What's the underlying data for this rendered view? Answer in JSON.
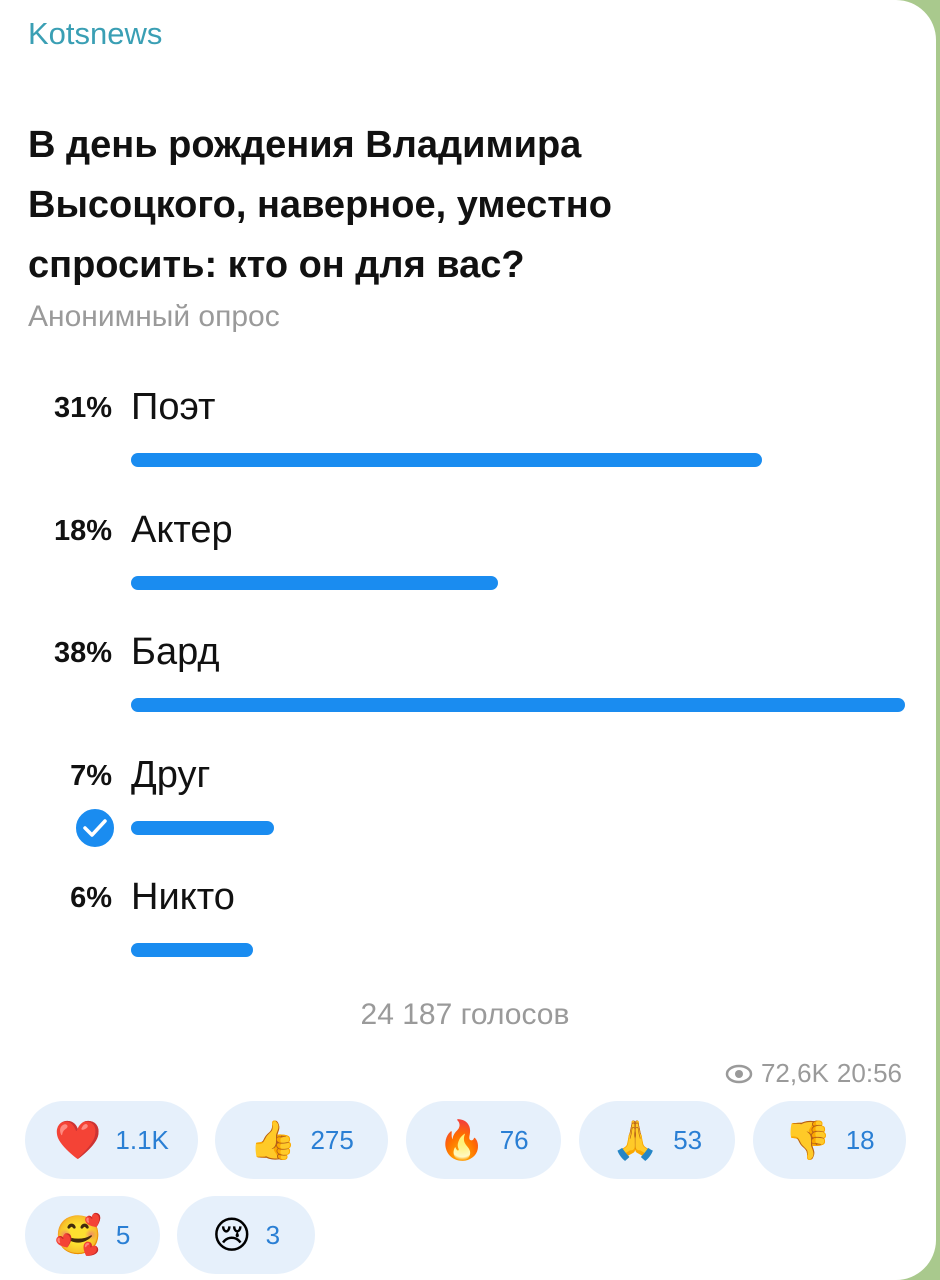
{
  "header": {
    "channel": "Kotsnews"
  },
  "poll": {
    "question": [
      "В день рождения Владимира",
      "Высоцкого, наверное, уместно",
      "спросить: кто он для вас?"
    ],
    "type": "Анонимный опрос",
    "options": [
      {
        "value": 31,
        "value_label": "31%",
        "text": "Поэт",
        "selected": false
      },
      {
        "value": 18,
        "value_label": "18%",
        "text": "Актер",
        "selected": false
      },
      {
        "value": 38,
        "value_label": "38%",
        "text": "Бард",
        "selected": false
      },
      {
        "value": 7,
        "value_label": "7%",
        "text": "Друг",
        "selected": true
      },
      {
        "value": 6,
        "value_label": "6%",
        "text": "Никто",
        "selected": false
      }
    ],
    "votes": "24 187 голосов"
  },
  "footer": {
    "views": "72,6K",
    "time": "20:56"
  },
  "reactions": [
    {
      "emoji": "❤️",
      "count": "1.1K"
    },
    {
      "emoji": "👍",
      "count": "275"
    },
    {
      "emoji": "🔥",
      "count": "76"
    },
    {
      "emoji": "🙏",
      "count": "53"
    },
    {
      "emoji": "👎",
      "count": "18"
    },
    {
      "emoji": "🥰",
      "count": "5"
    },
    {
      "emoji": "😢",
      "count": "3"
    }
  ]
}
